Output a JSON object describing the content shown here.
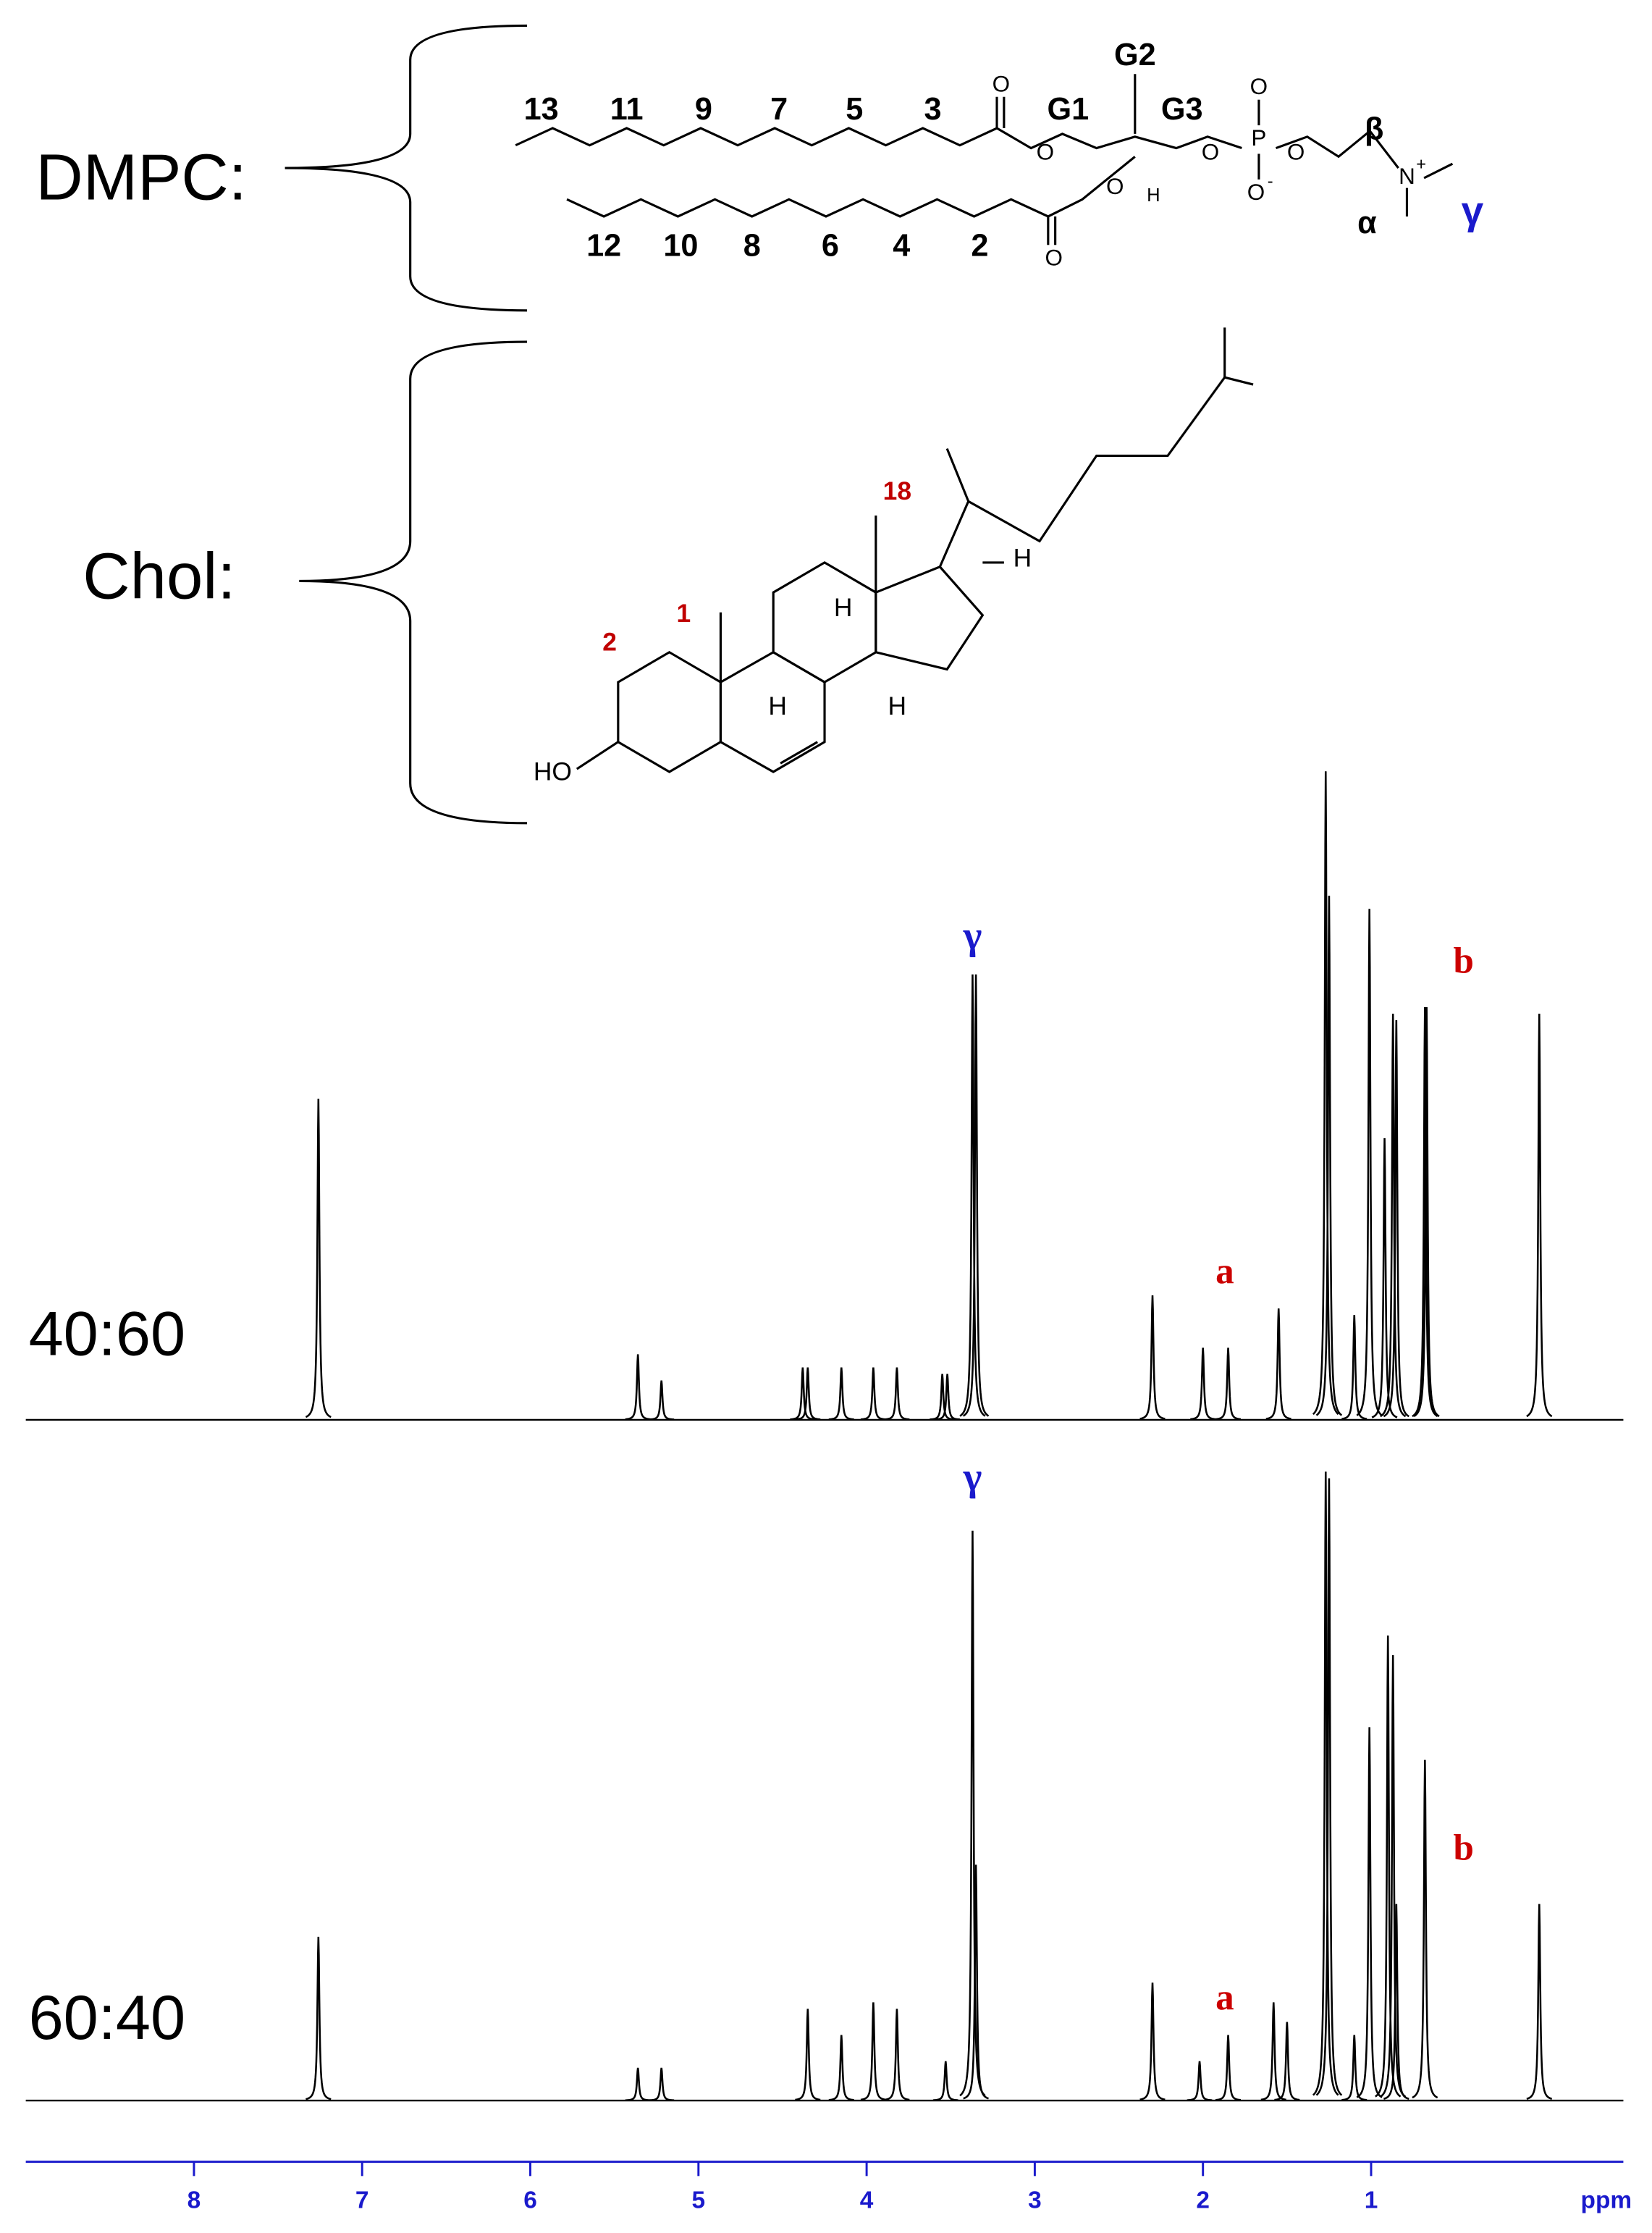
{
  "structures": {
    "dmpc": {
      "label": "DMPC:",
      "chain_top": [
        "13",
        "11",
        "9",
        "7",
        "5",
        "3"
      ],
      "chain_bottom": [
        "12",
        "10",
        "8",
        "6",
        "4",
        "2"
      ],
      "glycerol": [
        "G1",
        "G2",
        "G3"
      ],
      "headgroup": [
        "β",
        "α",
        "γ"
      ],
      "atoms": [
        "O",
        "O",
        "O",
        "O",
        "H",
        "O",
        "P",
        "O",
        "O",
        "O",
        "-",
        "N",
        "+"
      ]
    },
    "chol": {
      "label": "Chol:",
      "numbers": [
        "1",
        "2",
        "18"
      ],
      "atoms": [
        "H",
        "H",
        "H",
        "H",
        "HO"
      ]
    }
  },
  "chart_data": {
    "type": "spectrum",
    "xlim": [
      9,
      -0.5
    ],
    "xticks": [
      8,
      7,
      6,
      5,
      4,
      3,
      2,
      1
    ],
    "xlabel": "ppm",
    "ylim": [
      0,
      100
    ],
    "series": [
      {
        "name": "40:60",
        "color": "#000000",
        "annotations": [
          "γ",
          "a",
          "b"
        ],
        "x": [
          7.26,
          5.36,
          5.22,
          4.38,
          4.35,
          4.15,
          3.96,
          3.82,
          3.55,
          3.52,
          3.37,
          3.35,
          2.3,
          2.0,
          1.85,
          1.55,
          1.27,
          1.25,
          1.1,
          1.01,
          0.92,
          0.87,
          0.85,
          0.68,
          0.67,
          0.0
        ],
        "values": [
          49,
          10,
          6,
          8,
          8,
          8,
          8,
          8,
          7,
          7,
          68,
          68,
          19,
          11,
          11,
          17,
          99,
          80,
          16,
          78,
          43,
          62,
          61,
          63,
          63,
          62
        ]
      },
      {
        "name": "60:40",
        "color": "#000000",
        "annotations": [
          "γ",
          "a",
          "b"
        ],
        "x": [
          7.26,
          5.36,
          5.22,
          4.35,
          4.15,
          3.96,
          3.82,
          3.53,
          3.37,
          3.35,
          2.3,
          2.02,
          1.85,
          1.58,
          1.5,
          1.27,
          1.25,
          1.1,
          1.01,
          0.9,
          0.87,
          0.85,
          0.68,
          0.0
        ],
        "values": [
          25,
          5,
          5,
          14,
          10,
          15,
          14,
          6,
          87,
          36,
          18,
          6,
          10,
          15,
          12,
          96,
          95,
          10,
          57,
          71,
          68,
          30,
          52,
          30
        ]
      }
    ]
  }
}
